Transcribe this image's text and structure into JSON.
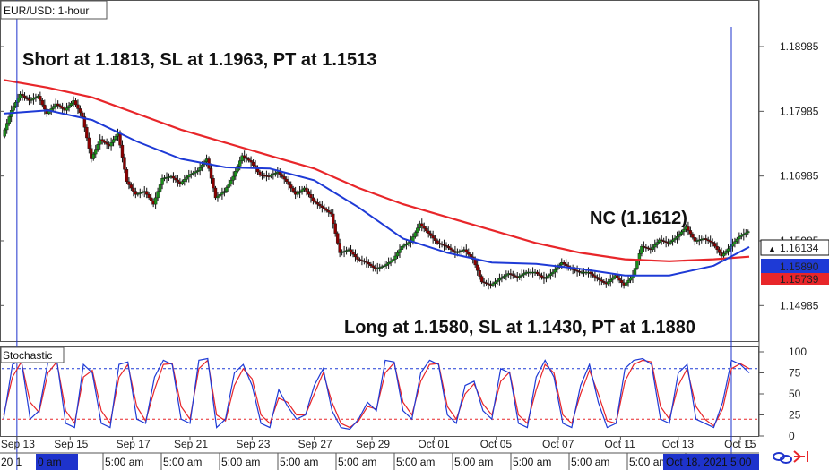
{
  "chart_data": {
    "type": "candlestick",
    "title": "EUR/USD: 1-hour",
    "price_axis": {
      "ticks": [
        "1.18985",
        "1.17985",
        "1.16985",
        "1.15985",
        "1.14985"
      ],
      "ylim": [
        1.1445,
        1.194
      ]
    },
    "current_price": "1.16134",
    "ma_labels": [
      {
        "value": "1.15890",
        "color": "#1e3ad6"
      },
      {
        "value": "1.15739",
        "color": "#e8262a"
      }
    ],
    "price_path": [
      [
        0,
        1.176
      ],
      [
        2,
        1.18
      ],
      [
        4,
        1.1825
      ],
      [
        6,
        1.1815
      ],
      [
        8,
        1.1822
      ],
      [
        10,
        1.1795
      ],
      [
        12,
        1.181
      ],
      [
        14,
        1.18
      ],
      [
        16,
        1.1815
      ],
      [
        18,
        1.179
      ],
      [
        20,
        1.1725
      ],
      [
        22,
        1.1755
      ],
      [
        24,
        1.1745
      ],
      [
        26,
        1.1765
      ],
      [
        28,
        1.169
      ],
      [
        30,
        1.167
      ],
      [
        32,
        1.1675
      ],
      [
        34,
        1.1655
      ],
      [
        36,
        1.1695
      ],
      [
        38,
        1.1698
      ],
      [
        40,
        1.1687
      ],
      [
        42,
        1.17
      ],
      [
        44,
        1.1707
      ],
      [
        46,
        1.1725
      ],
      [
        48,
        1.1665
      ],
      [
        50,
        1.1675
      ],
      [
        52,
        1.1698
      ],
      [
        54,
        1.173
      ],
      [
        56,
        1.172
      ],
      [
        58,
        1.17
      ],
      [
        60,
        1.1698
      ],
      [
        62,
        1.1705
      ],
      [
        64,
        1.169
      ],
      [
        66,
        1.167
      ],
      [
        68,
        1.168
      ],
      [
        70,
        1.166
      ],
      [
        72,
        1.165
      ],
      [
        74,
        1.164
      ],
      [
        76,
        1.158
      ],
      [
        78,
        1.1585
      ],
      [
        80,
        1.157
      ],
      [
        82,
        1.1565
      ],
      [
        84,
        1.1555
      ],
      [
        86,
        1.156
      ],
      [
        88,
        1.157
      ],
      [
        90,
        1.159
      ],
      [
        92,
        1.1598
      ],
      [
        94,
        1.1625
      ],
      [
        96,
        1.161
      ],
      [
        98,
        1.1595
      ],
      [
        100,
        1.159
      ],
      [
        102,
        1.158
      ],
      [
        104,
        1.1585
      ],
      [
        106,
        1.157
      ],
      [
        108,
        1.1535
      ],
      [
        110,
        1.153
      ],
      [
        112,
        1.154
      ],
      [
        114,
        1.1548
      ],
      [
        116,
        1.1542
      ],
      [
        118,
        1.155
      ],
      [
        120,
        1.155
      ],
      [
        122,
        1.154
      ],
      [
        124,
        1.155
      ],
      [
        126,
        1.1565
      ],
      [
        128,
        1.1555
      ],
      [
        130,
        1.155
      ],
      [
        132,
        1.155
      ],
      [
        134,
        1.154
      ],
      [
        136,
        1.1532
      ],
      [
        138,
        1.1545
      ],
      [
        140,
        1.153
      ],
      [
        142,
        1.1545
      ],
      [
        144,
        1.159
      ],
      [
        146,
        1.1585
      ],
      [
        148,
        1.16
      ],
      [
        150,
        1.1595
      ],
      [
        152,
        1.1605
      ],
      [
        154,
        1.162
      ],
      [
        156,
        1.1598
      ],
      [
        158,
        1.1602
      ],
      [
        160,
        1.1595
      ],
      [
        162,
        1.1575
      ],
      [
        164,
        1.159
      ],
      [
        166,
        1.1605
      ],
      [
        168,
        1.1613
      ]
    ],
    "ma_fast_path": [
      [
        0,
        1.1795
      ],
      [
        10,
        1.18
      ],
      [
        20,
        1.1785
      ],
      [
        30,
        1.1752
      ],
      [
        40,
        1.1725
      ],
      [
        50,
        1.1712
      ],
      [
        60,
        1.171
      ],
      [
        70,
        1.1692
      ],
      [
        80,
        1.165
      ],
      [
        90,
        1.1602
      ],
      [
        100,
        1.158
      ],
      [
        110,
        1.1565
      ],
      [
        120,
        1.1563
      ],
      [
        130,
        1.1555
      ],
      [
        140,
        1.1545
      ],
      [
        150,
        1.1545
      ],
      [
        160,
        1.156
      ],
      [
        168,
        1.1589
      ]
    ],
    "ma_slow_path": [
      [
        0,
        1.1847
      ],
      [
        10,
        1.1835
      ],
      [
        20,
        1.182
      ],
      [
        30,
        1.1795
      ],
      [
        40,
        1.177
      ],
      [
        50,
        1.175
      ],
      [
        60,
        1.173
      ],
      [
        70,
        1.171
      ],
      [
        80,
        1.168
      ],
      [
        90,
        1.1655
      ],
      [
        100,
        1.1635
      ],
      [
        110,
        1.1615
      ],
      [
        120,
        1.1595
      ],
      [
        130,
        1.158
      ],
      [
        140,
        1.157
      ],
      [
        150,
        1.1567
      ],
      [
        160,
        1.157
      ],
      [
        168,
        1.1574
      ]
    ],
    "annotations": [
      {
        "text": "Short at 1.1813, SL at 1.1963, PT at 1.1513"
      },
      {
        "text": "NC (1.1612)"
      },
      {
        "text": "Long at 1.1580, SL at 1.1430, PT at 1.1880"
      }
    ],
    "stochastic": {
      "label": "Stochastic",
      "ticks": [
        "100",
        "75",
        "50",
        "25",
        "0"
      ],
      "ylim": [
        0,
        100
      ],
      "levels": [
        80,
        20
      ],
      "k": [
        [
          0,
          20
        ],
        [
          2,
          85
        ],
        [
          4,
          90
        ],
        [
          6,
          20
        ],
        [
          8,
          30
        ],
        [
          10,
          88
        ],
        [
          12,
          90
        ],
        [
          14,
          15
        ],
        [
          16,
          10
        ],
        [
          18,
          85
        ],
        [
          20,
          75
        ],
        [
          22,
          15
        ],
        [
          24,
          10
        ],
        [
          26,
          85
        ],
        [
          28,
          88
        ],
        [
          30,
          20
        ],
        [
          32,
          15
        ],
        [
          34,
          70
        ],
        [
          36,
          90
        ],
        [
          38,
          85
        ],
        [
          40,
          20
        ],
        [
          42,
          15
        ],
        [
          44,
          90
        ],
        [
          46,
          92
        ],
        [
          48,
          10
        ],
        [
          50,
          20
        ],
        [
          52,
          75
        ],
        [
          54,
          85
        ],
        [
          56,
          60
        ],
        [
          58,
          15
        ],
        [
          60,
          10
        ],
        [
          62,
          55
        ],
        [
          64,
          35
        ],
        [
          66,
          20
        ],
        [
          68,
          25
        ],
        [
          70,
          60
        ],
        [
          72,
          80
        ],
        [
          74,
          30
        ],
        [
          76,
          10
        ],
        [
          78,
          8
        ],
        [
          80,
          20
        ],
        [
          82,
          40
        ],
        [
          84,
          30
        ],
        [
          86,
          90
        ],
        [
          88,
          88
        ],
        [
          90,
          30
        ],
        [
          92,
          20
        ],
        [
          94,
          75
        ],
        [
          96,
          90
        ],
        [
          98,
          85
        ],
        [
          100,
          25
        ],
        [
          102,
          15
        ],
        [
          104,
          60
        ],
        [
          106,
          65
        ],
        [
          108,
          30
        ],
        [
          110,
          20
        ],
        [
          112,
          80
        ],
        [
          114,
          75
        ],
        [
          116,
          15
        ],
        [
          118,
          10
        ],
        [
          120,
          70
        ],
        [
          122,
          90
        ],
        [
          124,
          70
        ],
        [
          126,
          15
        ],
        [
          128,
          10
        ],
        [
          130,
          60
        ],
        [
          132,
          85
        ],
        [
          134,
          40
        ],
        [
          136,
          10
        ],
        [
          138,
          15
        ],
        [
          140,
          80
        ],
        [
          142,
          90
        ],
        [
          144,
          92
        ],
        [
          146,
          85
        ],
        [
          148,
          20
        ],
        [
          150,
          15
        ],
        [
          152,
          75
        ],
        [
          154,
          85
        ],
        [
          156,
          20
        ],
        [
          158,
          15
        ],
        [
          160,
          10
        ],
        [
          162,
          40
        ],
        [
          164,
          90
        ],
        [
          166,
          85
        ],
        [
          168,
          75
        ]
      ],
      "d": [
        [
          0,
          25
        ],
        [
          2,
          70
        ],
        [
          4,
          88
        ],
        [
          6,
          40
        ],
        [
          8,
          28
        ],
        [
          10,
          75
        ],
        [
          12,
          88
        ],
        [
          14,
          30
        ],
        [
          16,
          15
        ],
        [
          18,
          70
        ],
        [
          20,
          78
        ],
        [
          22,
          30
        ],
        [
          24,
          15
        ],
        [
          26,
          70
        ],
        [
          28,
          85
        ],
        [
          30,
          35
        ],
        [
          32,
          18
        ],
        [
          34,
          55
        ],
        [
          36,
          85
        ],
        [
          38,
          86
        ],
        [
          40,
          35
        ],
        [
          42,
          20
        ],
        [
          44,
          80
        ],
        [
          46,
          90
        ],
        [
          48,
          25
        ],
        [
          50,
          18
        ],
        [
          52,
          60
        ],
        [
          54,
          80
        ],
        [
          56,
          68
        ],
        [
          58,
          25
        ],
        [
          60,
          15
        ],
        [
          62,
          45
        ],
        [
          64,
          40
        ],
        [
          66,
          25
        ],
        [
          68,
          25
        ],
        [
          70,
          50
        ],
        [
          72,
          75
        ],
        [
          74,
          40
        ],
        [
          76,
          15
        ],
        [
          78,
          10
        ],
        [
          80,
          18
        ],
        [
          82,
          35
        ],
        [
          84,
          32
        ],
        [
          86,
          75
        ],
        [
          88,
          87
        ],
        [
          90,
          40
        ],
        [
          92,
          25
        ],
        [
          94,
          65
        ],
        [
          96,
          85
        ],
        [
          98,
          86
        ],
        [
          100,
          35
        ],
        [
          102,
          20
        ],
        [
          104,
          50
        ],
        [
          106,
          62
        ],
        [
          108,
          38
        ],
        [
          110,
          25
        ],
        [
          112,
          65
        ],
        [
          114,
          76
        ],
        [
          116,
          25
        ],
        [
          118,
          15
        ],
        [
          120,
          55
        ],
        [
          122,
          85
        ],
        [
          124,
          75
        ],
        [
          126,
          25
        ],
        [
          128,
          15
        ],
        [
          130,
          50
        ],
        [
          132,
          78
        ],
        [
          134,
          50
        ],
        [
          136,
          18
        ],
        [
          138,
          15
        ],
        [
          140,
          65
        ],
        [
          142,
          85
        ],
        [
          144,
          90
        ],
        [
          146,
          88
        ],
        [
          148,
          35
        ],
        [
          150,
          20
        ],
        [
          152,
          60
        ],
        [
          154,
          80
        ],
        [
          156,
          35
        ],
        [
          158,
          20
        ],
        [
          160,
          12
        ],
        [
          162,
          32
        ],
        [
          164,
          80
        ],
        [
          166,
          86
        ],
        [
          168,
          80
        ]
      ]
    },
    "date_labels": [
      {
        "label": "Sep 13",
        "t": 3
      },
      {
        "label": "Sep 15",
        "t": 15
      },
      {
        "label": "Sep 17",
        "t": 29
      },
      {
        "label": "Sep 21",
        "t": 42
      },
      {
        "label": "Sep 23",
        "t": 56
      },
      {
        "label": "Sep 27",
        "t": 70
      },
      {
        "label": "Sep 29",
        "t": 83
      },
      {
        "label": "Oct 01",
        "t": 97
      },
      {
        "label": "Oct 05",
        "t": 111
      },
      {
        "label": "Oct 07",
        "t": 125
      },
      {
        "label": "Oct 11",
        "t": 139
      },
      {
        "label": "Oct 13",
        "t": 152
      },
      {
        "label": "Oct 15",
        "t": 166
      }
    ],
    "time_labels": [
      "5:00 am",
      "5:00 am",
      "5:00 am",
      "5:00 am",
      "5:00 am",
      "5:00 am",
      "5:00 am",
      "5:00 am",
      "5:00 am",
      "5:00 am",
      "5:00 am"
    ],
    "time_left_fragment": "20 1",
    "time_left_highlight": "0 am",
    "time_right_highlight": "Oct 18, 2021 5:00",
    "right_edge_date_fragment": "C",
    "colors": {
      "up": "#1a8f1a",
      "down": "#8b0000",
      "ma_fast": "#1e3ad6",
      "ma_slow": "#e8262a",
      "stoch_k": "#1e3ad6",
      "stoch_d": "#e8262a",
      "highlight": "#1e33cc"
    }
  }
}
